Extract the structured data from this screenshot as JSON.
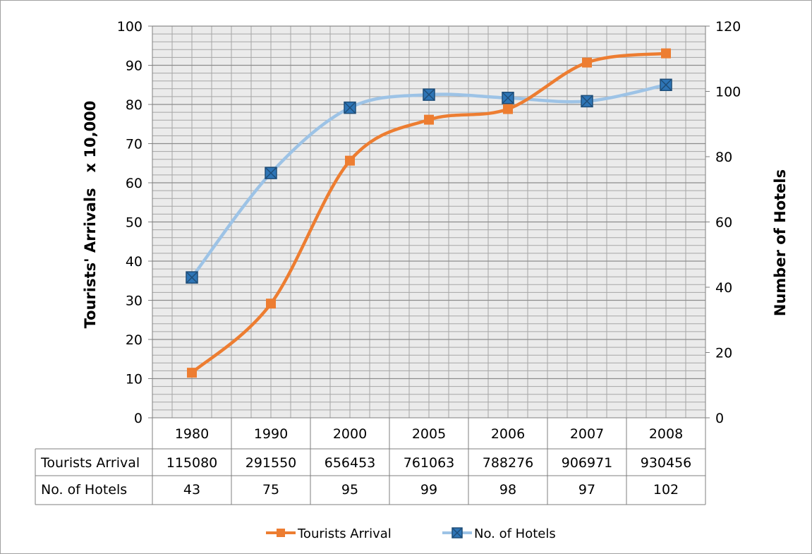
{
  "chart_data": {
    "type": "line",
    "categories": [
      "1980",
      "1990",
      "2000",
      "2005",
      "2006",
      "2007",
      "2008"
    ],
    "series": [
      {
        "name": "Tourists Arrival",
        "axis": "left",
        "values": [
          11.508,
          29.155,
          65.6453,
          76.1063,
          78.8276,
          90.6971,
          93.0456
        ],
        "table_values": [
          "115080",
          "291550",
          "656453",
          "761063",
          "788276",
          "906971",
          "930456"
        ],
        "color": "#ED7D31",
        "marker": "square"
      },
      {
        "name": "No. of Hotels",
        "axis": "right",
        "values": [
          43,
          75,
          95,
          99,
          98,
          97,
          102
        ],
        "table_values": [
          "43",
          "75",
          "95",
          "99",
          "98",
          "97",
          "102"
        ],
        "color": "#9DC3E6",
        "marker_color": "#1F4E79",
        "marker": "square-x"
      }
    ],
    "ylabel": "Tourists' Arrivals   x 10,000",
    "y2label": "Number of Hotels",
    "ylim": [
      0,
      100
    ],
    "y2lim": [
      0,
      120
    ],
    "yticks": [
      "0",
      "10",
      "20",
      "30",
      "40",
      "50",
      "60",
      "70",
      "80",
      "90",
      "100"
    ],
    "y2ticks": [
      "0",
      "20",
      "40",
      "60",
      "80",
      "100",
      "120"
    ],
    "grid": true,
    "data_table": true,
    "legend_position": "bottom",
    "colors": {
      "plot_background": "#EBEBEB",
      "grid": "#A6A6A6",
      "axis": "#7F7F7F"
    }
  }
}
